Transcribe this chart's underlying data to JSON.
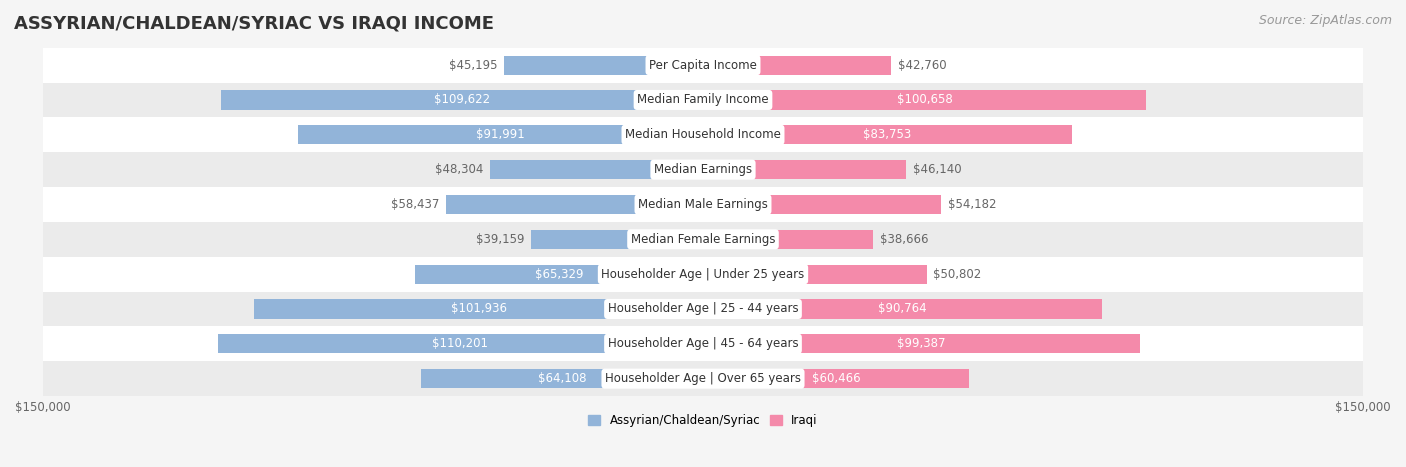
{
  "title": "ASSYRIAN/CHALDEAN/SYRIAC VS IRAQI INCOME",
  "source": "Source: ZipAtlas.com",
  "categories": [
    "Per Capita Income",
    "Median Family Income",
    "Median Household Income",
    "Median Earnings",
    "Median Male Earnings",
    "Median Female Earnings",
    "Householder Age | Under 25 years",
    "Householder Age | 25 - 44 years",
    "Householder Age | 45 - 64 years",
    "Householder Age | Over 65 years"
  ],
  "assyrian_values": [
    45195,
    109622,
    91991,
    48304,
    58437,
    39159,
    65329,
    101936,
    110201,
    64108
  ],
  "iraqi_values": [
    42760,
    100658,
    83753,
    46140,
    54182,
    38666,
    50802,
    90764,
    99387,
    60466
  ],
  "assyrian_labels": [
    "$45,195",
    "$109,622",
    "$91,991",
    "$48,304",
    "$58,437",
    "$39,159",
    "$65,329",
    "$101,936",
    "$110,201",
    "$64,108"
  ],
  "iraqi_labels": [
    "$42,760",
    "$100,658",
    "$83,753",
    "$46,140",
    "$54,182",
    "$38,666",
    "$50,802",
    "$90,764",
    "$99,387",
    "$60,466"
  ],
  "max_value": 150000,
  "assyrian_color": "#92b4d9",
  "iraqi_color": "#f48aaa",
  "assyrian_color_strong": "#6699cc",
  "iraqi_color_strong": "#f06090",
  "label_color_inner": "#ffffff",
  "label_color_outer": "#888888",
  "background_color": "#f5f5f5",
  "row_bg_color": "#ffffff",
  "row_alt_color": "#f0f0f0",
  "center_label_bg": "#ffffff",
  "bar_height": 0.55,
  "xlim": 150000,
  "xlabel_left": "$150,000",
  "xlabel_right": "$150,000",
  "legend_label_assyrian": "Assyrian/Chaldean/Syriac",
  "legend_label_iraqi": "Iraqi",
  "title_fontsize": 13,
  "source_fontsize": 9,
  "label_fontsize": 8.5,
  "category_fontsize": 8.5,
  "axis_fontsize": 8.5
}
